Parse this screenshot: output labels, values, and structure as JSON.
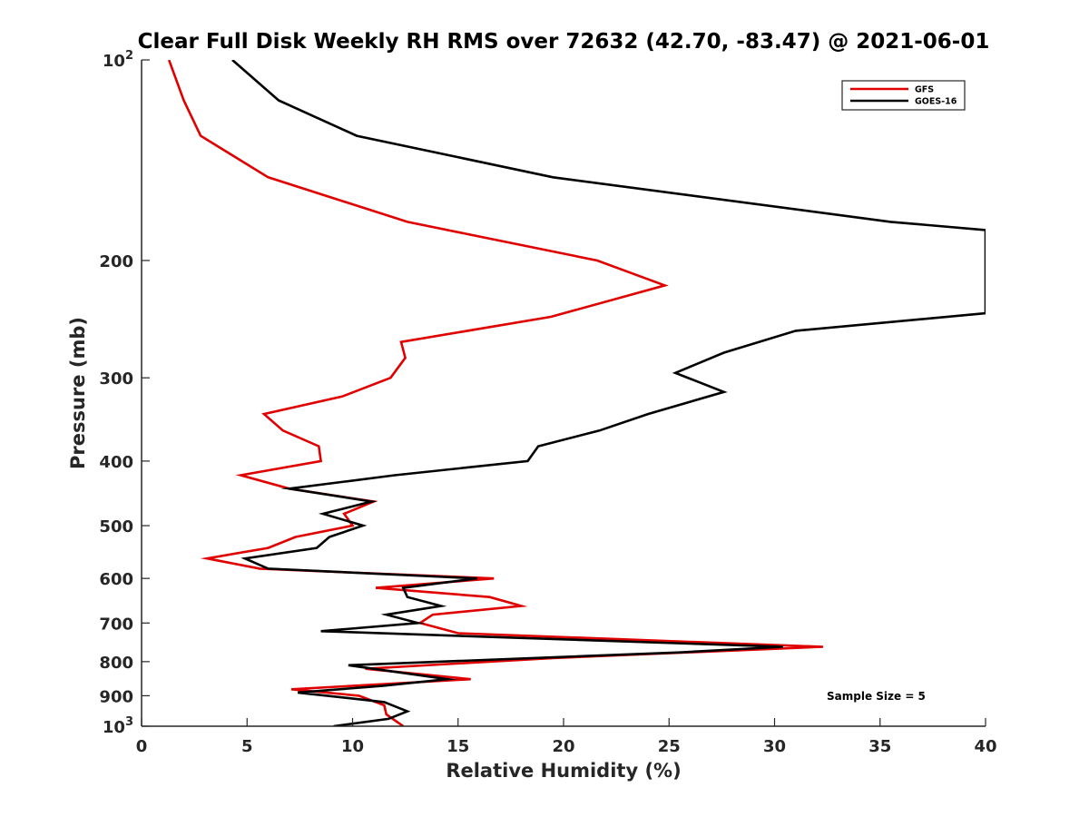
{
  "chart_data": {
    "type": "line",
    "title": "Clear Full Disk Weekly RH RMS over 72632 (42.70, -83.47) @ 2021-06-01",
    "xlabel": "Relative Humidity (%)",
    "ylabel": "Pressure (mb)",
    "xlim": [
      0,
      40
    ],
    "ylim": [
      100,
      1000
    ],
    "y_scale": "log",
    "y_reversed": true,
    "grid": false,
    "legend_position": "top-right",
    "annotation": "Sample Size = 5",
    "x_ticks": [
      "0",
      "5",
      "10",
      "15",
      "20",
      "25",
      "30",
      "35",
      "40"
    ],
    "x_tick_values": [
      0,
      5,
      10,
      15,
      20,
      25,
      30,
      35,
      40
    ],
    "y_ticks": [
      {
        "value": 100,
        "base": "10",
        "exp": "2"
      },
      {
        "value": 200,
        "label": "200"
      },
      {
        "value": 300,
        "label": "300"
      },
      {
        "value": 400,
        "label": "400"
      },
      {
        "value": 500,
        "label": "500"
      },
      {
        "value": 600,
        "label": "600"
      },
      {
        "value": 700,
        "label": "700"
      },
      {
        "value": 800,
        "label": "800"
      },
      {
        "value": 900,
        "label": "900"
      },
      {
        "value": 1000,
        "base": "10",
        "exp": "3"
      }
    ],
    "series": [
      {
        "name": "GFS",
        "color": "#e00000",
        "points": [
          [
            1.3,
            100
          ],
          [
            2.0,
            115
          ],
          [
            2.8,
            130
          ],
          [
            6.0,
            150
          ],
          [
            12.6,
            175
          ],
          [
            21.6,
            200
          ],
          [
            24.8,
            218
          ],
          [
            19.4,
            243
          ],
          [
            12.3,
            265
          ],
          [
            12.5,
            280
          ],
          [
            11.8,
            300
          ],
          [
            9.5,
            320
          ],
          [
            5.8,
            340
          ],
          [
            6.7,
            360
          ],
          [
            8.4,
            380
          ],
          [
            8.5,
            400
          ],
          [
            4.7,
            420
          ],
          [
            7.0,
            440
          ],
          [
            11.0,
            460
          ],
          [
            9.6,
            480
          ],
          [
            10.0,
            500
          ],
          [
            7.3,
            520
          ],
          [
            6.0,
            540
          ],
          [
            3.1,
            560
          ],
          [
            5.6,
            580
          ],
          [
            16.7,
            600
          ],
          [
            11.1,
            620
          ],
          [
            16.5,
            640
          ],
          [
            18.0,
            660
          ],
          [
            13.8,
            680
          ],
          [
            13.2,
            700
          ],
          [
            15.0,
            725
          ],
          [
            32.3,
            760
          ],
          [
            19.5,
            790
          ],
          [
            10.6,
            820
          ],
          [
            15.6,
            850
          ],
          [
            7.1,
            880
          ],
          [
            10.3,
            900
          ],
          [
            11.5,
            930
          ],
          [
            11.6,
            960
          ],
          [
            12.4,
            1000
          ]
        ]
      },
      {
        "name": "GOES-16",
        "color": "#000000",
        "points": [
          [
            4.3,
            100
          ],
          [
            6.5,
            115
          ],
          [
            10.2,
            130
          ],
          [
            19.5,
            150
          ],
          [
            35.5,
            175
          ],
          [
            40.0,
            180
          ],
          [
            40.0,
            240
          ],
          [
            31.0,
            255
          ],
          [
            27.6,
            275
          ],
          [
            25.3,
            295
          ],
          [
            27.6,
            315
          ],
          [
            24.0,
            340
          ],
          [
            21.7,
            360
          ],
          [
            18.8,
            380
          ],
          [
            18.3,
            400
          ],
          [
            12.0,
            420
          ],
          [
            7.0,
            440
          ],
          [
            10.9,
            460
          ],
          [
            8.6,
            480
          ],
          [
            10.5,
            500
          ],
          [
            8.9,
            520
          ],
          [
            8.3,
            540
          ],
          [
            4.9,
            560
          ],
          [
            6.0,
            580
          ],
          [
            15.9,
            600
          ],
          [
            12.4,
            620
          ],
          [
            12.6,
            640
          ],
          [
            14.2,
            660
          ],
          [
            11.6,
            680
          ],
          [
            13.1,
            700
          ],
          [
            8.5,
            720
          ],
          [
            30.4,
            760
          ],
          [
            25.5,
            775
          ],
          [
            9.8,
            810
          ],
          [
            14.5,
            850
          ],
          [
            11.4,
            870
          ],
          [
            7.4,
            890
          ],
          [
            11.5,
            920
          ],
          [
            12.6,
            950
          ],
          [
            11.7,
            975
          ],
          [
            9.1,
            1000
          ]
        ]
      }
    ]
  }
}
